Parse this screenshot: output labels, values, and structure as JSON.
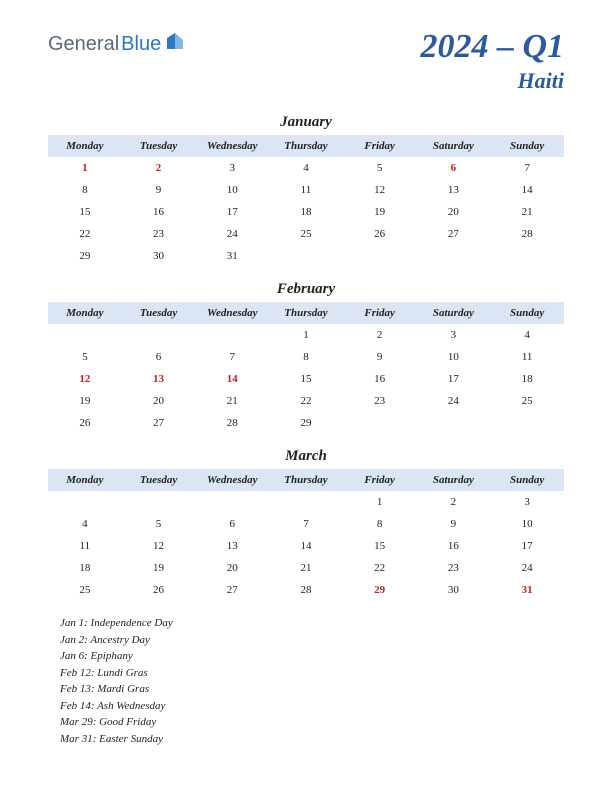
{
  "logo": {
    "part1": "General",
    "part2": "Blue"
  },
  "title": {
    "quarter": "2024 – Q1",
    "country": "Haiti"
  },
  "dayHeaders": [
    "Monday",
    "Tuesday",
    "Wednesday",
    "Thursday",
    "Friday",
    "Saturday",
    "Sunday"
  ],
  "colors": {
    "headerBg": "#dbe5f4",
    "titleColor": "#2b5a9e",
    "holidayColor": "#c22020",
    "textColor": "#222222",
    "background": "#ffffff"
  },
  "typography": {
    "quarter_fontsize": 34,
    "country_fontsize": 22,
    "month_fontsize": 15,
    "header_fontsize": 11,
    "cell_fontsize": 11,
    "holiday_fontsize": 11,
    "font_family": "Georgia, serif",
    "italic": true
  },
  "months": [
    {
      "name": "January",
      "weeks": [
        [
          {
            "d": "1",
            "h": true
          },
          {
            "d": "2",
            "h": true
          },
          {
            "d": "3"
          },
          {
            "d": "4"
          },
          {
            "d": "5"
          },
          {
            "d": "6",
            "h": true
          },
          {
            "d": "7"
          }
        ],
        [
          {
            "d": "8"
          },
          {
            "d": "9"
          },
          {
            "d": "10"
          },
          {
            "d": "11"
          },
          {
            "d": "12"
          },
          {
            "d": "13"
          },
          {
            "d": "14"
          }
        ],
        [
          {
            "d": "15"
          },
          {
            "d": "16"
          },
          {
            "d": "17"
          },
          {
            "d": "18"
          },
          {
            "d": "19"
          },
          {
            "d": "20"
          },
          {
            "d": "21"
          }
        ],
        [
          {
            "d": "22"
          },
          {
            "d": "23"
          },
          {
            "d": "24"
          },
          {
            "d": "25"
          },
          {
            "d": "26"
          },
          {
            "d": "27"
          },
          {
            "d": "28"
          }
        ],
        [
          {
            "d": "29"
          },
          {
            "d": "30"
          },
          {
            "d": "31"
          },
          {
            "d": ""
          },
          {
            "d": ""
          },
          {
            "d": ""
          },
          {
            "d": ""
          }
        ]
      ]
    },
    {
      "name": "February",
      "weeks": [
        [
          {
            "d": ""
          },
          {
            "d": ""
          },
          {
            "d": ""
          },
          {
            "d": "1"
          },
          {
            "d": "2"
          },
          {
            "d": "3"
          },
          {
            "d": "4"
          }
        ],
        [
          {
            "d": "5"
          },
          {
            "d": "6"
          },
          {
            "d": "7"
          },
          {
            "d": "8"
          },
          {
            "d": "9"
          },
          {
            "d": "10"
          },
          {
            "d": "11"
          }
        ],
        [
          {
            "d": "12",
            "h": true
          },
          {
            "d": "13",
            "h": true
          },
          {
            "d": "14",
            "h": true
          },
          {
            "d": "15"
          },
          {
            "d": "16"
          },
          {
            "d": "17"
          },
          {
            "d": "18"
          }
        ],
        [
          {
            "d": "19"
          },
          {
            "d": "20"
          },
          {
            "d": "21"
          },
          {
            "d": "22"
          },
          {
            "d": "23"
          },
          {
            "d": "24"
          },
          {
            "d": "25"
          }
        ],
        [
          {
            "d": "26"
          },
          {
            "d": "27"
          },
          {
            "d": "28"
          },
          {
            "d": "29"
          },
          {
            "d": ""
          },
          {
            "d": ""
          },
          {
            "d": ""
          }
        ]
      ]
    },
    {
      "name": "March",
      "weeks": [
        [
          {
            "d": ""
          },
          {
            "d": ""
          },
          {
            "d": ""
          },
          {
            "d": ""
          },
          {
            "d": "1"
          },
          {
            "d": "2"
          },
          {
            "d": "3"
          }
        ],
        [
          {
            "d": "4"
          },
          {
            "d": "5"
          },
          {
            "d": "6"
          },
          {
            "d": "7"
          },
          {
            "d": "8"
          },
          {
            "d": "9"
          },
          {
            "d": "10"
          }
        ],
        [
          {
            "d": "11"
          },
          {
            "d": "12"
          },
          {
            "d": "13"
          },
          {
            "d": "14"
          },
          {
            "d": "15"
          },
          {
            "d": "16"
          },
          {
            "d": "17"
          }
        ],
        [
          {
            "d": "18"
          },
          {
            "d": "19"
          },
          {
            "d": "20"
          },
          {
            "d": "21"
          },
          {
            "d": "22"
          },
          {
            "d": "23"
          },
          {
            "d": "24"
          }
        ],
        [
          {
            "d": "25"
          },
          {
            "d": "26"
          },
          {
            "d": "27"
          },
          {
            "d": "28"
          },
          {
            "d": "29",
            "h": true
          },
          {
            "d": "30"
          },
          {
            "d": "31",
            "h": true
          }
        ]
      ]
    }
  ],
  "holidays": [
    "Jan 1: Independence Day",
    "Jan 2: Ancestry Day",
    "Jan 6: Epiphany",
    "Feb 12: Lundi Gras",
    "Feb 13: Mardi Gras",
    "Feb 14: Ash Wednesday",
    "Mar 29: Good Friday",
    "Mar 31: Easter Sunday"
  ]
}
